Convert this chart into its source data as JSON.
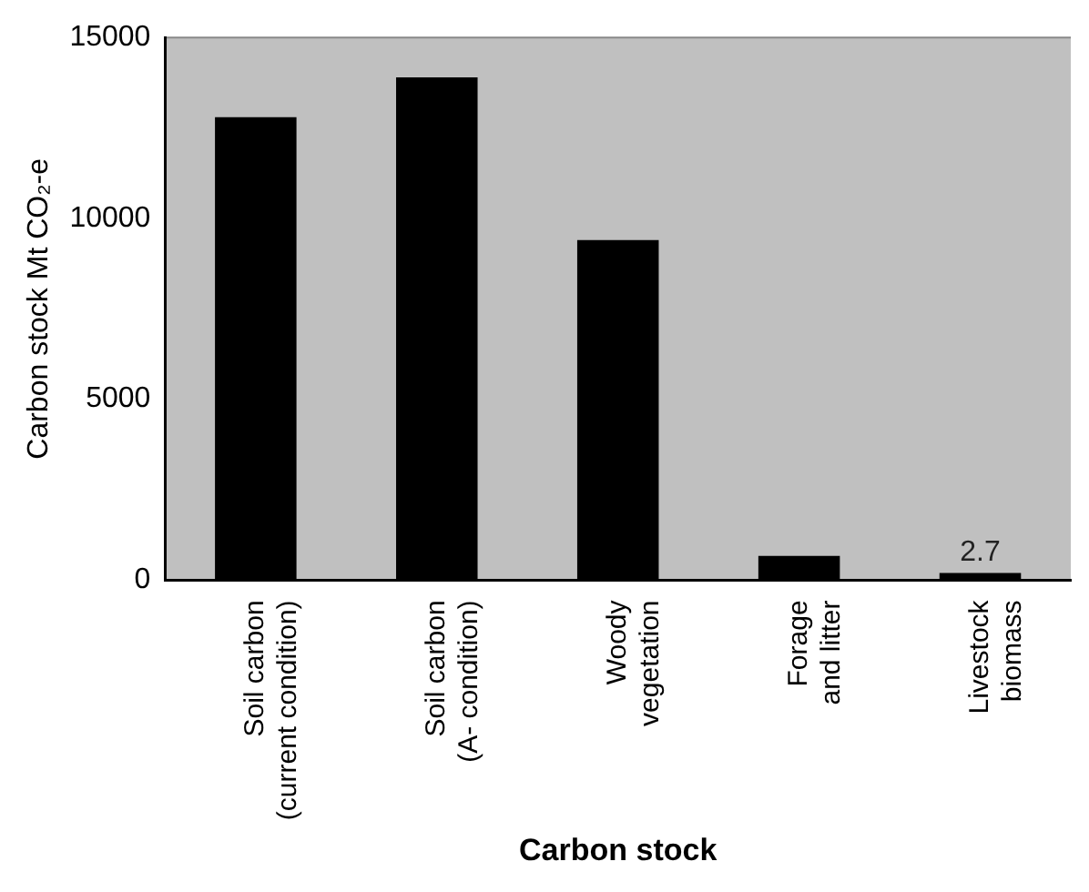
{
  "chart_data": {
    "type": "bar",
    "xlabel": "Carbon stock",
    "ylabel": "Carbon stock Mt CO₂-e",
    "categories": [
      "Soil carbon\n(current condition)",
      "Soil carbon\n(A- condition)",
      "Woody\nvegetation",
      "Forage\nand litter",
      "Livestock\nbiomass"
    ],
    "values": [
      12800,
      13900,
      9400,
      670,
      200
    ],
    "color": "#000000",
    "ylim": [
      0,
      15000
    ],
    "yticks": [
      0,
      5000,
      10000,
      15000
    ],
    "grid": false,
    "legend": false,
    "annotations": [
      {
        "text": "2.7",
        "x": "Livestock\nbiomass",
        "y": 200
      }
    ]
  }
}
